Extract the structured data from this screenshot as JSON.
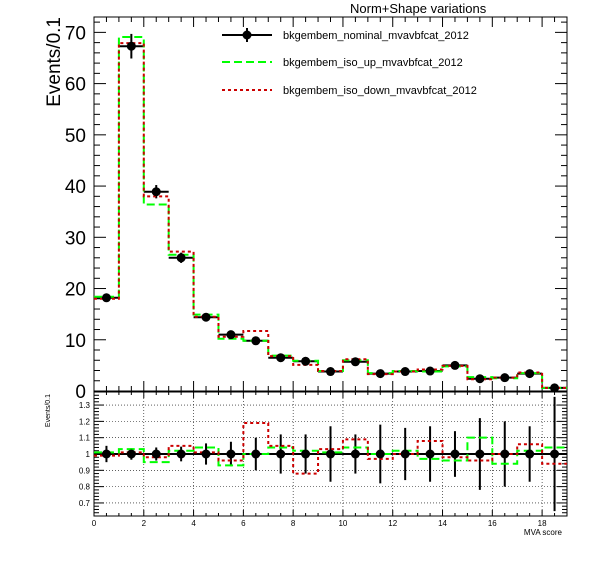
{
  "chart_data": {
    "type": "line",
    "title": "Norm+Shape variations",
    "ylabel": "Events/0.1",
    "xlabel": "MVA score",
    "ratio_ylabel": "Events/0.1",
    "xlim": [
      0,
      19
    ],
    "ylim": [
      0,
      73
    ],
    "ratio_ylim": [
      0.62,
      1.38
    ],
    "x_ticks": [
      0,
      2,
      4,
      6,
      8,
      10,
      12,
      14,
      16,
      18
    ],
    "y_ticks": [
      0,
      10,
      20,
      30,
      40,
      50,
      60,
      70
    ],
    "ratio_y_ticks": [
      0.7,
      0.8,
      0.9,
      1,
      1.1,
      1.2,
      1.3
    ],
    "grid": true,
    "legend_position": "top",
    "bin_edges": [
      0,
      1,
      2,
      3,
      4,
      5,
      6,
      7,
      8,
      9,
      10,
      11,
      12,
      13,
      14,
      15,
      16,
      17,
      18,
      19
    ],
    "series": [
      {
        "name": "bkgembem_nominal_mvavbfcat_2012",
        "style": "points",
        "color": "#000000",
        "values": [
          18.2,
          67.3,
          38.9,
          26.0,
          14.4,
          11.0,
          9.8,
          6.5,
          5.8,
          3.8,
          5.7,
          3.4,
          3.8,
          3.9,
          5.0,
          2.4,
          2.6,
          3.4,
          0.6
        ],
        "errors": [
          0.8,
          2.4,
          1.3,
          1.0,
          0.8,
          0.7,
          0.6,
          0.6,
          0.6,
          0.5,
          0.6,
          0.5,
          0.5,
          0.5,
          0.6,
          0.4,
          0.5,
          0.5,
          0.2
        ]
      },
      {
        "name": "bkgembem_iso_up_mvavbfcat_2012",
        "style": "dashed",
        "color": "#00ff00",
        "values": [
          18.4,
          69.1,
          36.4,
          26.6,
          14.9,
          10.2,
          9.8,
          6.9,
          5.9,
          3.9,
          6.0,
          3.5,
          3.9,
          3.8,
          4.8,
          2.7,
          2.5,
          3.5,
          0.6
        ]
      },
      {
        "name": "bkgembem_iso_down_mvavbfcat_2012",
        "style": "dotted",
        "color": "#cc0000",
        "values": [
          18.0,
          67.9,
          38.0,
          27.2,
          14.5,
          10.6,
          11.7,
          6.8,
          5.1,
          3.9,
          6.2,
          3.3,
          3.8,
          4.2,
          4.9,
          2.3,
          2.6,
          3.6,
          0.6
        ]
      }
    ],
    "ratio": [
      {
        "name": "bkgembem_nominal_mvavbfcat_2012",
        "values": [
          1,
          1,
          1,
          1,
          1,
          1,
          1,
          1,
          1,
          1,
          1,
          1,
          1,
          1,
          1,
          1,
          1,
          1,
          1
        ],
        "errors": [
          0.05,
          0.035,
          0.04,
          0.045,
          0.065,
          0.075,
          0.1,
          0.12,
          0.12,
          0.17,
          0.12,
          0.18,
          0.16,
          0.17,
          0.14,
          0.22,
          0.2,
          0.17,
          0.35
        ]
      },
      {
        "name": "bkgembem_iso_up_mvavbfcat_2012",
        "values": [
          1.01,
          1.03,
          0.95,
          1.02,
          1.04,
          0.93,
          1.0,
          1.04,
          1.02,
          1.01,
          1.04,
          1.0,
          1.02,
          0.97,
          0.96,
          1.1,
          0.94,
          1.02,
          1.04
        ]
      },
      {
        "name": "bkgembem_iso_down_mvavbfcat_2012",
        "values": [
          0.99,
          1.01,
          0.98,
          1.05,
          1.01,
          0.96,
          1.19,
          1.05,
          0.88,
          1.03,
          1.09,
          0.97,
          1.0,
          1.08,
          0.98,
          0.96,
          1.0,
          1.06,
          0.94
        ]
      }
    ]
  }
}
